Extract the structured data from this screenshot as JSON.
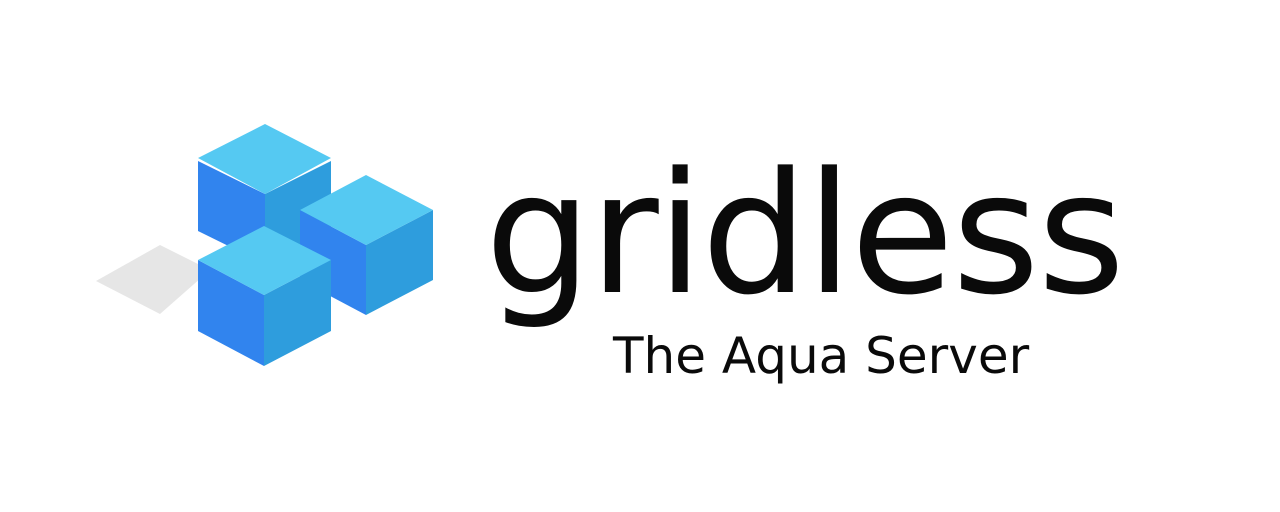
{
  "brand": {
    "name": "gridless",
    "tagline": "The Aqua Server"
  },
  "logo": {
    "icon": "isometric-cubes-icon",
    "colors": {
      "cube_top": "#55C9F2",
      "cube_left": "#3184EE",
      "cube_right": "#2E9DDD",
      "shadow_tile": "#E6E6E6"
    }
  },
  "colors": {
    "text": "#0A0A0A",
    "background": "#FFFFFF"
  }
}
